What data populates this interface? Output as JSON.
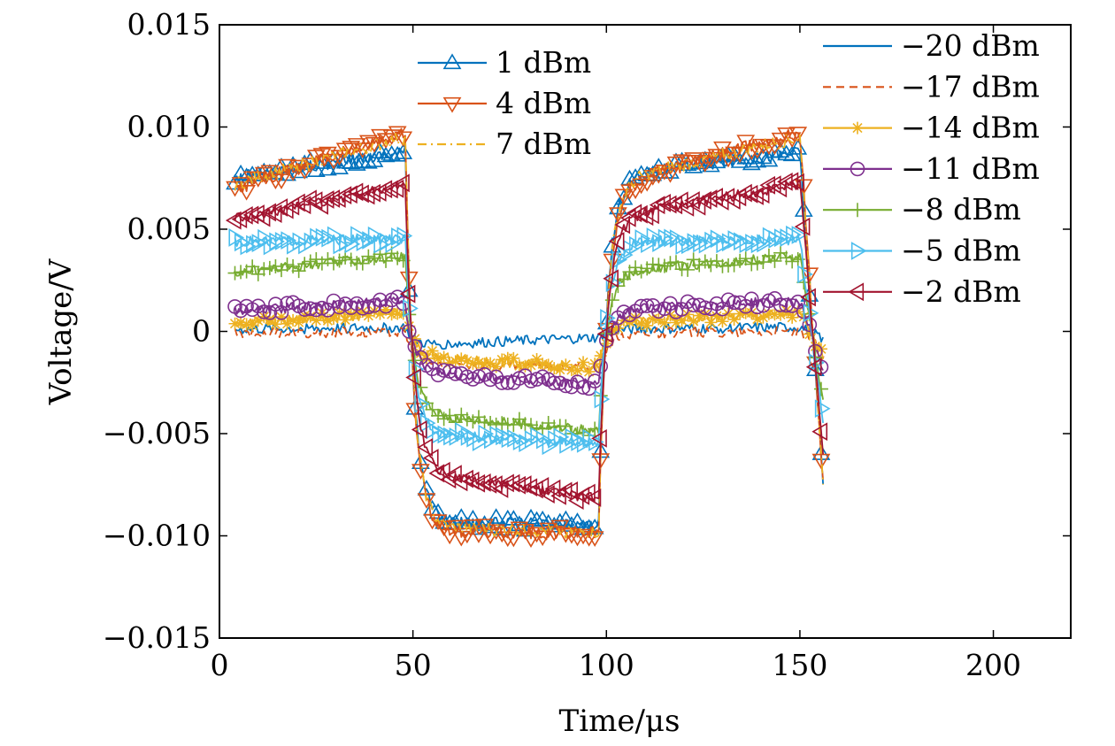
{
  "chart_data": {
    "type": "line",
    "title": "",
    "xlabel": "Time/μs",
    "ylabel": "Voltage/V",
    "xlim": [
      0,
      220
    ],
    "ylim": [
      -0.015,
      0.015
    ],
    "x_ticks": [
      0,
      50,
      100,
      150,
      200
    ],
    "x_tick_labels": [
      "0",
      "50",
      "100",
      "150",
      "200"
    ],
    "y_ticks": [
      -0.015,
      -0.01,
      -0.005,
      0,
      0.005,
      0.01,
      0.015
    ],
    "y_tick_labels": [
      "−0.015",
      "−0.010",
      "−0.005",
      "0",
      "0.005",
      "0.010",
      "0.015"
    ],
    "grid": false,
    "legend_placement": "top (two columns)",
    "pulse_timing_us": {
      "start": 4,
      "fall1": 48,
      "rise": 98,
      "fall2": 150,
      "end": 156
    },
    "series": [
      {
        "name": "1 dBm",
        "color": "#0072bd",
        "marker": "triangle-up",
        "dash": "solid",
        "legend_column": "left",
        "high_start": 0.0075,
        "high_end": 0.0088,
        "low_start": -0.0093,
        "low_end": -0.0095,
        "final": -0.0075
      },
      {
        "name": "4 dBm",
        "color": "#d95319",
        "marker": "triangle-down",
        "dash": "solid",
        "legend_column": "left",
        "high_start": 0.007,
        "high_end": 0.0097,
        "low_start": -0.0097,
        "low_end": -0.0099,
        "final": -0.0075
      },
      {
        "name": "7 dBm",
        "color": "#edb120",
        "marker": "none",
        "dash": "dashdot",
        "legend_column": "left",
        "high_start": 0.0072,
        "high_end": 0.0095,
        "low_start": -0.0096,
        "low_end": -0.0098,
        "final": -0.0073
      },
      {
        "name": "−20 dBm",
        "color": "#0072bd",
        "marker": "none",
        "dash": "solid",
        "legend_column": "right",
        "high_start": 0.0001,
        "high_end": 0.0002,
        "low_start": -0.0007,
        "low_end": -0.0003,
        "final": -0.0003
      },
      {
        "name": "−17 dBm",
        "color": "#d95319",
        "marker": "none",
        "dash": "dashed",
        "legend_column": "right",
        "high_start": -0.0001,
        "high_end": 0.0,
        "low_start": -0.0015,
        "low_end": -0.0018,
        "final": -0.001
      },
      {
        "name": "−14 dBm",
        "color": "#edb120",
        "marker": "asterisk",
        "dash": "solid",
        "legend_column": "right",
        "high_start": 0.0004,
        "high_end": 0.0009,
        "low_start": -0.0012,
        "low_end": -0.0018,
        "final": -0.0012
      },
      {
        "name": "−11 dBm",
        "color": "#7e2f8e",
        "marker": "circle",
        "dash": "solid",
        "legend_column": "right",
        "high_start": 0.001,
        "high_end": 0.0015,
        "low_start": -0.002,
        "low_end": -0.0026,
        "final": -0.0019
      },
      {
        "name": "−8 dBm",
        "color": "#77ac30",
        "marker": "plus",
        "dash": "solid",
        "legend_column": "right",
        "high_start": 0.0029,
        "high_end": 0.0037,
        "low_start": -0.004,
        "low_end": -0.0049,
        "final": -0.0035
      },
      {
        "name": "−5 dBm",
        "color": "#4dbeee",
        "marker": "triangle-right",
        "dash": "solid",
        "legend_column": "right",
        "high_start": 0.0044,
        "high_end": 0.0045,
        "low_start": -0.005,
        "low_end": -0.0055,
        "final": -0.0043
      },
      {
        "name": "−2 dBm",
        "color": "#a2142f",
        "marker": "triangle-left",
        "dash": "solid",
        "legend_column": "right",
        "high_start": 0.0055,
        "high_end": 0.0072,
        "low_start": -0.0068,
        "low_end": -0.0082,
        "final": -0.006
      }
    ]
  }
}
